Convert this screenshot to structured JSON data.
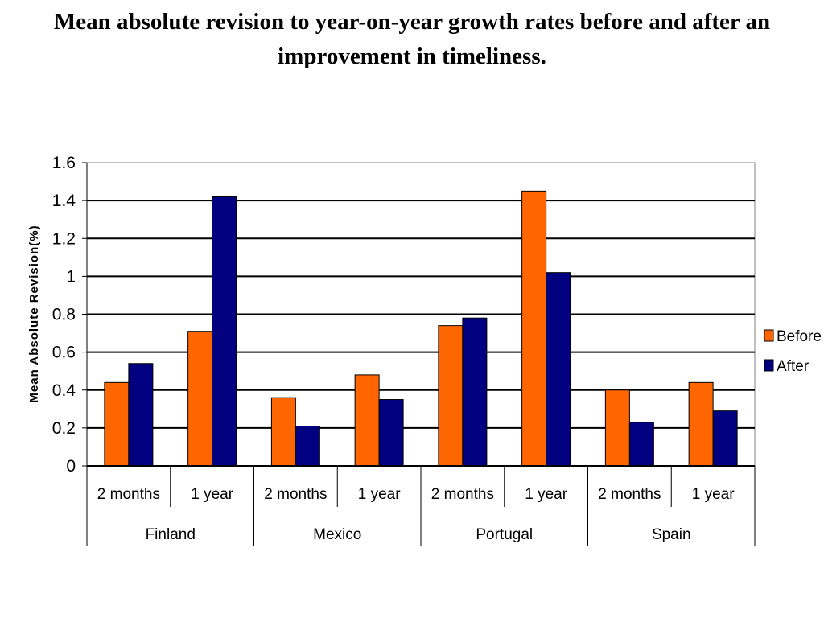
{
  "chart_data": {
    "type": "bar",
    "title": "Mean absolute revision to year-on-year growth rates before and after an improvement in timeliness.",
    "ylabel": "Mean Absolute Revision(%)",
    "xlabel": "",
    "ylim": [
      0,
      1.6
    ],
    "yticks": [
      "0",
      "0.2",
      "0.4",
      "0.6",
      "0.8",
      "1",
      "1.2",
      "1.4",
      "1.6"
    ],
    "grid": true,
    "legend_position": "right",
    "groups": [
      "Finland",
      "Mexico",
      "Portugal",
      "Spain"
    ],
    "categories": [
      "2 months",
      "1 year",
      "2 months",
      "1 year",
      "2 months",
      "1 year",
      "2 months",
      "1 year"
    ],
    "series": [
      {
        "name": "Before",
        "color": "#FF6600",
        "values": [
          0.44,
          0.71,
          0.36,
          0.48,
          0.74,
          1.45,
          0.4,
          0.44
        ]
      },
      {
        "name": "After",
        "color": "#000080",
        "values": [
          0.54,
          1.42,
          0.21,
          0.35,
          0.78,
          1.02,
          0.23,
          0.29
        ]
      }
    ]
  }
}
